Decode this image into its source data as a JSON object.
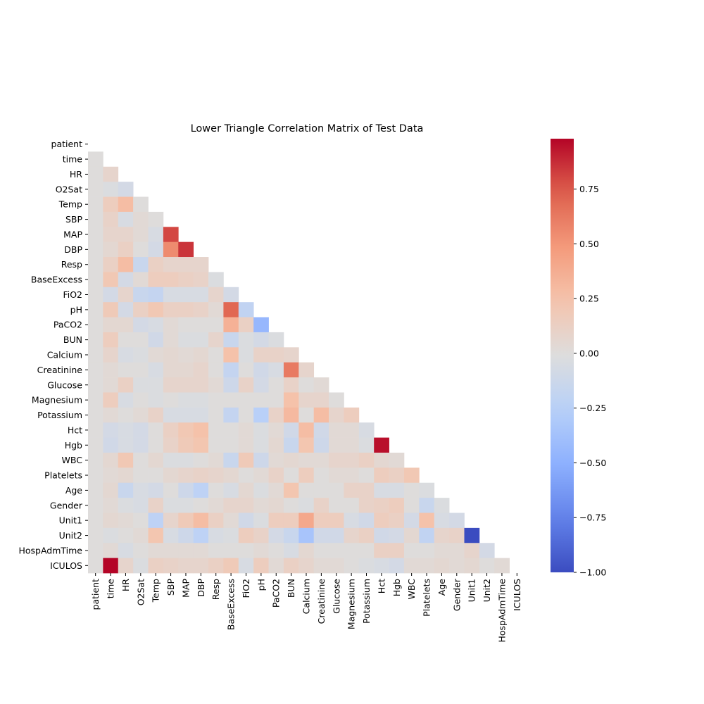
{
  "chart_data": {
    "type": "heatmap",
    "title": "Lower Triangle Correlation Matrix of Test Data",
    "xlabel": "",
    "ylabel": "",
    "labels": [
      "patient",
      "time",
      "HR",
      "O2Sat",
      "Temp",
      "SBP",
      "MAP",
      "DBP",
      "Resp",
      "BaseExcess",
      "FiO2",
      "pH",
      "PaCO2",
      "BUN",
      "Calcium",
      "Creatinine",
      "Glucose",
      "Magnesium",
      "Potassium",
      "Hct",
      "Hgb",
      "WBC",
      "Platelets",
      "Age",
      "Gender",
      "Unit1",
      "Unit2",
      "HospAdmTime",
      "ICULOS"
    ],
    "mask": "upper triangle including diagonal",
    "colormap": "coolwarm",
    "colorbar": {
      "vmin": -1.0,
      "vmax": 0.98,
      "ticks": [
        -1.0,
        -0.75,
        -0.5,
        -0.25,
        0.0,
        0.25,
        0.5,
        0.75
      ],
      "tick_labels": [
        "−1.00",
        "−0.75",
        "−0.50",
        "−0.25",
        "0.00",
        "0.25",
        "0.50",
        "0.75"
      ]
    },
    "rows": [
      [],
      [
        0.0
      ],
      [
        0.0,
        0.08
      ],
      [
        0.0,
        -0.03,
        -0.08
      ],
      [
        0.0,
        0.15,
        0.28,
        0.0
      ],
      [
        0.0,
        0.1,
        -0.05,
        0.03,
        0.0
      ],
      [
        0.0,
        0.08,
        0.08,
        0.03,
        -0.05,
        0.8
      ],
      [
        0.0,
        0.05,
        0.12,
        0.0,
        -0.08,
        0.55,
        0.85
      ],
      [
        0.0,
        0.12,
        0.28,
        -0.15,
        0.12,
        0.08,
        0.08,
        0.08
      ],
      [
        0.0,
        0.2,
        -0.08,
        0.03,
        0.15,
        0.15,
        0.12,
        0.1,
        -0.03
      ],
      [
        0.0,
        -0.08,
        0.08,
        -0.15,
        -0.18,
        -0.05,
        -0.05,
        -0.05,
        0.08,
        -0.08
      ],
      [
        0.0,
        0.18,
        -0.08,
        0.12,
        0.2,
        0.12,
        0.12,
        0.1,
        0.03,
        0.7,
        -0.2
      ],
      [
        0.0,
        0.05,
        0.05,
        -0.08,
        -0.05,
        0.03,
        0.0,
        0.0,
        0.0,
        0.35,
        0.12,
        -0.45
      ],
      [
        0.0,
        0.15,
        0.0,
        0.0,
        -0.1,
        0.03,
        -0.03,
        -0.03,
        0.08,
        -0.15,
        -0.03,
        -0.08,
        -0.03
      ],
      [
        0.0,
        0.08,
        -0.05,
        -0.03,
        0.03,
        0.05,
        0.03,
        0.05,
        0.0,
        0.25,
        -0.03,
        0.1,
        0.1,
        0.08
      ],
      [
        0.0,
        0.03,
        0.0,
        0.0,
        -0.05,
        0.05,
        0.05,
        0.08,
        0.0,
        -0.18,
        0.0,
        -0.1,
        -0.05,
        0.62,
        0.08
      ],
      [
        0.0,
        0.03,
        0.12,
        -0.03,
        -0.03,
        0.08,
        0.08,
        0.08,
        0.03,
        -0.12,
        0.1,
        -0.08,
        0.0,
        0.1,
        0.0,
        0.03
      ],
      [
        0.0,
        0.15,
        -0.05,
        0.0,
        -0.03,
        0.0,
        -0.03,
        -0.03,
        0.0,
        0.0,
        0.0,
        0.0,
        0.0,
        0.25,
        0.08,
        0.08,
        0.0
      ],
      [
        0.0,
        0.03,
        0.0,
        0.03,
        0.1,
        -0.05,
        -0.05,
        -0.05,
        0.0,
        -0.18,
        0.0,
        -0.25,
        0.1,
        0.3,
        0.0,
        0.28,
        0.08,
        0.15
      ],
      [
        0.0,
        -0.08,
        -0.05,
        -0.08,
        0.0,
        0.12,
        0.2,
        0.25,
        0.0,
        0.0,
        0.03,
        -0.03,
        0.03,
        -0.1,
        0.28,
        -0.1,
        0.03,
        0.03,
        -0.05
      ],
      [
        0.0,
        -0.1,
        -0.05,
        -0.08,
        0.0,
        0.1,
        0.18,
        0.22,
        0.0,
        0.0,
        0.03,
        -0.03,
        0.05,
        -0.15,
        0.22,
        -0.12,
        0.03,
        0.03,
        -0.03,
        0.95
      ],
      [
        0.0,
        0.05,
        0.2,
        0.0,
        0.05,
        -0.03,
        -0.03,
        0.0,
        0.03,
        -0.15,
        0.18,
        -0.12,
        0.03,
        0.05,
        0.03,
        0.03,
        0.08,
        0.08,
        0.12,
        0.05,
        0.03
      ],
      [
        0.0,
        0.03,
        0.05,
        0.0,
        0.0,
        0.05,
        0.08,
        0.1,
        0.08,
        0.05,
        0.0,
        0.03,
        0.1,
        0.0,
        0.15,
        0.0,
        0.03,
        0.03,
        0.0,
        0.15,
        0.12,
        0.2
      ],
      [
        0.0,
        0.05,
        -0.15,
        -0.05,
        -0.08,
        0.0,
        -0.12,
        -0.22,
        0.0,
        -0.05,
        0.05,
        -0.03,
        0.03,
        0.22,
        0.0,
        0.0,
        0.0,
        0.1,
        0.1,
        -0.05,
        -0.05,
        0.0,
        -0.03
      ],
      [
        0.0,
        0.03,
        -0.03,
        -0.05,
        0.1,
        -0.03,
        -0.03,
        0.0,
        0.03,
        0.08,
        0.08,
        0.03,
        0.05,
        0.0,
        -0.03,
        0.1,
        0.0,
        0.0,
        0.1,
        0.12,
        0.15,
        0.0,
        -0.15,
        -0.03
      ],
      [
        0.0,
        0.05,
        0.03,
        0.0,
        -0.22,
        0.08,
        0.18,
        0.28,
        0.12,
        0.03,
        -0.1,
        -0.03,
        0.15,
        0.15,
        0.4,
        0.15,
        0.15,
        -0.05,
        -0.1,
        0.15,
        0.12,
        -0.08,
        0.25,
        -0.05,
        -0.08
      ],
      [
        0.0,
        -0.03,
        0.0,
        0.03,
        0.22,
        -0.05,
        -0.12,
        -0.22,
        -0.05,
        -0.03,
        0.15,
        0.1,
        -0.08,
        -0.15,
        -0.35,
        -0.1,
        -0.1,
        0.08,
        0.12,
        -0.1,
        -0.08,
        0.05,
        -0.2,
        0.08,
        0.1,
        -1.0
      ],
      [
        0.0,
        0.03,
        -0.05,
        0.0,
        0.03,
        0.03,
        0.03,
        0.03,
        0.0,
        0.0,
        0.0,
        0.03,
        0.0,
        -0.05,
        0.05,
        0.0,
        0.0,
        0.0,
        0.0,
        0.12,
        0.12,
        0.0,
        0.0,
        0.03,
        0.03,
        0.08,
        -0.08
      ],
      [
        0.0,
        0.98,
        0.08,
        -0.03,
        0.12,
        0.1,
        0.08,
        0.08,
        0.12,
        0.18,
        -0.05,
        0.15,
        0.03,
        0.12,
        0.08,
        0.03,
        0.03,
        0.0,
        -0.03,
        -0.05,
        -0.08,
        0.03,
        0.03,
        0.05,
        0.03,
        0.05,
        0.0,
        0.03
      ]
    ]
  }
}
